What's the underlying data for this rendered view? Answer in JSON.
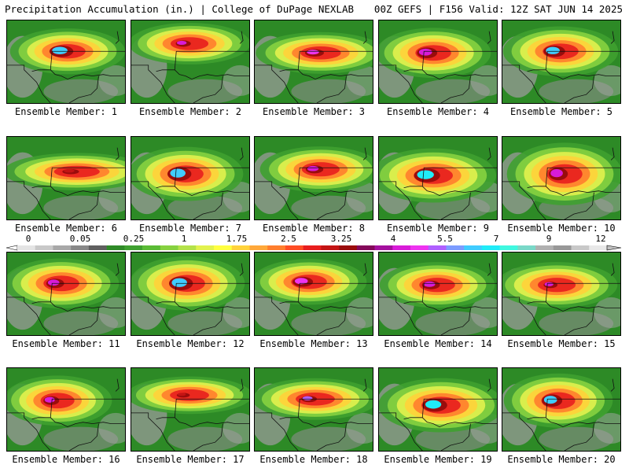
{
  "header": {
    "left": "Precipitation Accumulation (in.) | College of DuPage NEXLAB",
    "right": "00Z GEFS | F156 Valid: 12Z SAT JUN 14 2025"
  },
  "colorbar": {
    "labels": [
      "0",
      "0.05",
      "0.25",
      "1",
      "1.75",
      "2.5",
      "3.25",
      "4",
      "5.5",
      "7",
      "9",
      "12"
    ],
    "colors": [
      "#e4e4e4",
      "#c8c8c8",
      "#a8a8a8",
      "#888888",
      "#606060",
      "#2f8a28",
      "#3fa030",
      "#5abb35",
      "#86d140",
      "#b4e24a",
      "#e2f24e",
      "#ffff40",
      "#ffd23a",
      "#ffa83a",
      "#ff7e2d",
      "#ff4d24",
      "#e81e1e",
      "#c41414",
      "#9a0c0c",
      "#84085a",
      "#a4109e",
      "#d81cd8",
      "#ee34f0",
      "#b060ff",
      "#7c9cff",
      "#40ccff",
      "#20ecf8",
      "#40f8e0",
      "#7ad8c8",
      "#b0b0b0",
      "#989898",
      "#c8c8c8",
      "#e8e8e8"
    ]
  },
  "members": [
    {
      "caption": "Ensemble Member: 1"
    },
    {
      "caption": "Ensemble Member: 2"
    },
    {
      "caption": "Ensemble Member: 3"
    },
    {
      "caption": "Ensemble Member: 4"
    },
    {
      "caption": "Ensemble Member: 5"
    },
    {
      "caption": "Ensemble Member: 6"
    },
    {
      "caption": "Ensemble Member: 7"
    },
    {
      "caption": "Ensemble Member: 8"
    },
    {
      "caption": "Ensemble Member: 9"
    },
    {
      "caption": "Ensemble Member: 10"
    },
    {
      "caption": "Ensemble Member: 11"
    },
    {
      "caption": "Ensemble Member: 12"
    },
    {
      "caption": "Ensemble Member: 13"
    },
    {
      "caption": "Ensemble Member: 14"
    },
    {
      "caption": "Ensemble Member: 15"
    },
    {
      "caption": "Ensemble Member: 16"
    },
    {
      "caption": "Ensemble Member: 17"
    },
    {
      "caption": "Ensemble Member: 18"
    },
    {
      "caption": "Ensemble Member: 19"
    },
    {
      "caption": "Ensemble Member: 20"
    }
  ]
}
